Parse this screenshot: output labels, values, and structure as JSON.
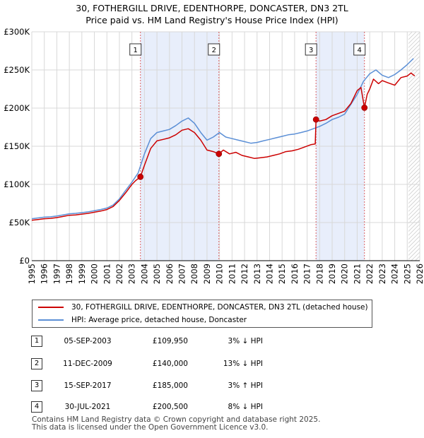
{
  "header": {
    "title": "30, FOTHERGILL DRIVE, EDENTHORPE, DONCASTER, DN3 2TL",
    "subtitle": "Price paid vs. HM Land Registry's House Price Index (HPI)"
  },
  "colors": {
    "property": "#cc0000",
    "hpi": "#5b8fd6",
    "shade": "#e8eefb",
    "grid": "#d8d8d8"
  },
  "chart_data": {
    "type": "line",
    "title": "Price paid vs. HM Land Registry's House Price Index (HPI)",
    "xlim": [
      1995,
      2026
    ],
    "ylim": [
      0,
      300000
    ],
    "x_ticks": [
      1995,
      1996,
      1997,
      1998,
      1999,
      2000,
      2001,
      2002,
      2003,
      2004,
      2005,
      2006,
      2007,
      2008,
      2009,
      2010,
      2011,
      2012,
      2013,
      2014,
      2015,
      2016,
      2017,
      2018,
      2019,
      2020,
      2021,
      2022,
      2023,
      2024,
      2025,
      2026
    ],
    "x_tick_labels": [
      "1995",
      "1996",
      "1997",
      "1998",
      "1999",
      "2000",
      "2001",
      "2002",
      "2003",
      "2004",
      "2005",
      "2006",
      "2007",
      "2008",
      "2009",
      "2010",
      "2011",
      "2012",
      "2013",
      "2014",
      "2015",
      "2016",
      "2017",
      "2018",
      "2019",
      "2020",
      "2021",
      "2022",
      "2023",
      "2024",
      "2025",
      "2026"
    ],
    "y_ticks": [
      0,
      50000,
      100000,
      150000,
      200000,
      250000,
      300000
    ],
    "y_tick_labels": [
      "£0",
      "£50K",
      "£100K",
      "£150K",
      "£200K",
      "£250K",
      "£300K"
    ],
    "shaded_periods": [
      [
        2003.68,
        2009.95
      ],
      [
        2017.71,
        2021.58
      ]
    ],
    "hatched_from": 2025.1,
    "series": [
      {
        "name": "30, FOTHERGILL DRIVE, EDENTHORPE, DONCASTER, DN3 2TL (detached house)",
        "x": [
          1995,
          1995.5,
          1996,
          1996.5,
          1997,
          1997.5,
          1998,
          1998.5,
          1999,
          1999.5,
          2000,
          2000.5,
          2001,
          2001.5,
          2002,
          2002.5,
          2003,
          2003.3,
          2003.68,
          2004,
          2004.5,
          2005,
          2005.5,
          2006,
          2006.5,
          2007,
          2007.5,
          2008,
          2008.5,
          2009,
          2009.5,
          2009.95,
          2010.3,
          2010.8,
          2011.3,
          2011.8,
          2012.3,
          2012.8,
          2013.3,
          2013.8,
          2014.3,
          2014.8,
          2015.3,
          2015.8,
          2016.3,
          2016.8,
          2017.3,
          2017.65,
          2017.71,
          2018,
          2018.5,
          2019,
          2019.5,
          2020,
          2020.5,
          2021,
          2021.3,
          2021.58,
          2021.8,
          2022,
          2022.3,
          2022.7,
          2023,
          2023.5,
          2024,
          2024.5,
          2025,
          2025.3,
          2025.6
        ],
        "values": [
          53000,
          54000,
          55000,
          55500,
          56500,
          58000,
          59500,
          60000,
          61000,
          62000,
          63500,
          65000,
          67000,
          71000,
          79000,
          89000,
          100000,
          105000,
          109950,
          125000,
          147000,
          157000,
          159000,
          161000,
          165000,
          171000,
          173000,
          168000,
          158000,
          145000,
          143000,
          140000,
          145000,
          140000,
          142000,
          138000,
          136000,
          134000,
          135000,
          136000,
          138000,
          140000,
          143000,
          144000,
          146000,
          149000,
          152000,
          153000,
          185000,
          183000,
          185000,
          190000,
          193000,
          196000,
          206000,
          223000,
          227000,
          200500,
          218000,
          225000,
          238000,
          232000,
          236000,
          233000,
          230000,
          240000,
          242000,
          246000,
          242000
        ]
      },
      {
        "name": "HPI: Average price, detached house, Doncaster",
        "x": [
          1995,
          1995.5,
          1996,
          1996.5,
          1997,
          1997.5,
          1998,
          1998.5,
          1999,
          1999.5,
          2000,
          2000.5,
          2001,
          2001.5,
          2002,
          2002.5,
          2003,
          2003.5,
          2004,
          2004.5,
          2005,
          2005.5,
          2006,
          2006.5,
          2007,
          2007.5,
          2008,
          2008.5,
          2009,
          2009.5,
          2010,
          2010.5,
          2011,
          2011.5,
          2012,
          2012.5,
          2013,
          2013.5,
          2014,
          2014.5,
          2015,
          2015.5,
          2016,
          2016.5,
          2017,
          2017.5,
          2018,
          2018.5,
          2019,
          2019.5,
          2020,
          2020.5,
          2021,
          2021.5,
          2022,
          2022.5,
          2023,
          2023.5,
          2024,
          2024.5,
          2025,
          2025.5
        ],
        "values": [
          55000,
          56000,
          57000,
          57500,
          58500,
          60000,
          61500,
          62000,
          63000,
          64000,
          65500,
          67000,
          69000,
          73000,
          81000,
          92000,
          103000,
          115000,
          140000,
          160000,
          168000,
          170000,
          172000,
          177000,
          183000,
          187000,
          180000,
          168000,
          158000,
          162000,
          168000,
          162000,
          160000,
          158000,
          156000,
          154000,
          155000,
          157000,
          159000,
          161000,
          163000,
          165000,
          166000,
          168000,
          170000,
          173000,
          176000,
          180000,
          185000,
          188000,
          192000,
          205000,
          218000,
          235000,
          245000,
          250000,
          243000,
          240000,
          244000,
          250000,
          257000,
          265000
        ]
      }
    ],
    "sale_points": [
      {
        "label": "1",
        "x": 2003.68,
        "value": 109950
      },
      {
        "label": "2",
        "x": 2009.95,
        "value": 140000
      },
      {
        "label": "3",
        "x": 2017.71,
        "value": 185000
      },
      {
        "label": "4",
        "x": 2021.58,
        "value": 200500
      }
    ]
  },
  "legend": {
    "property_label": "30, FOTHERGILL DRIVE, EDENTHORPE, DONCASTER, DN3 2TL (detached house)",
    "hpi_label": "HPI: Average price, detached house, Doncaster"
  },
  "transactions": [
    {
      "num": "1",
      "date": "05-SEP-2003",
      "price": "£109,950",
      "change": "3% ↓ HPI"
    },
    {
      "num": "2",
      "date": "11-DEC-2009",
      "price": "£140,000",
      "change": "13% ↓ HPI"
    },
    {
      "num": "3",
      "date": "15-SEP-2017",
      "price": "£185,000",
      "change": "3% ↑ HPI"
    },
    {
      "num": "4",
      "date": "30-JUL-2021",
      "price": "£200,500",
      "change": "8% ↓ HPI"
    }
  ],
  "footer": {
    "line1": "Contains HM Land Registry data © Crown copyright and database right 2025.",
    "line2": "This data is licensed under the Open Government Licence v3.0."
  }
}
